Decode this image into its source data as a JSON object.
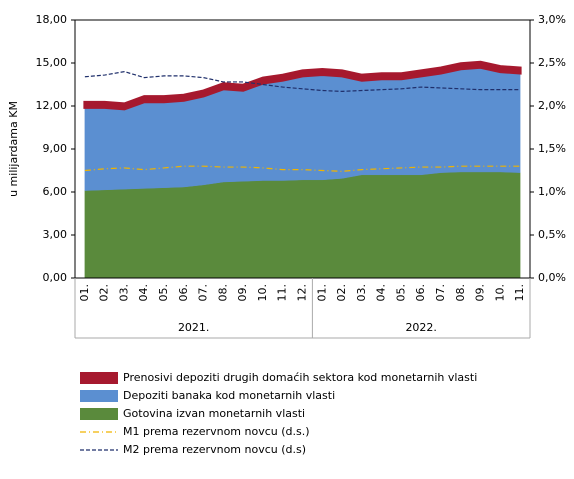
{
  "chart_data": {
    "type": "stacked_area_line",
    "y_label": "u milijardama KM",
    "categories": [
      "01.",
      "02.",
      "03.",
      "04.",
      "05.",
      "06.",
      "07.",
      "08.",
      "09.",
      "10.",
      "11.",
      "12.",
      "01.",
      "02.",
      "03.",
      "04.",
      "05.",
      "06.",
      "07.",
      "08.",
      "09.",
      "10.",
      "11."
    ],
    "group_labels": [
      "2021.",
      "2022."
    ],
    "ylim": [
      0,
      18
    ],
    "yticks": [
      {
        "value": 0,
        "label": "0,00"
      },
      {
        "value": 3,
        "label": "3,00"
      },
      {
        "value": 6,
        "label": "6,00"
      },
      {
        "value": 9,
        "label": "9,00"
      },
      {
        "value": 12,
        "label": "12,00"
      },
      {
        "value": 15,
        "label": "15,00"
      },
      {
        "value": 18,
        "label": "18,00"
      }
    ],
    "y2lim": [
      0,
      3
    ],
    "y2ticks": [
      {
        "value": 0,
        "label": "0,0%"
      },
      {
        "value": 0.5,
        "label": "0,5%"
      },
      {
        "value": 1,
        "label": "1,0%"
      },
      {
        "value": 1.5,
        "label": "1,5%"
      },
      {
        "value": 2,
        "label": "2,0%"
      },
      {
        "value": 2.5,
        "label": "2,5%"
      },
      {
        "value": 3,
        "label": "3,0%"
      }
    ],
    "series": [
      {
        "name": "Prenosivi depoziti drugih domaćih sektora kod monetarnih vlasti",
        "color": "#a6192e",
        "kind": "area",
        "values": [
          0.35,
          0.35,
          0.35,
          0.35,
          0.35,
          0.35,
          0.35,
          0.35,
          0.35,
          0.35,
          0.35,
          0.35,
          0.35,
          0.35,
          0.35,
          0.35,
          0.35,
          0.35,
          0.35,
          0.35,
          0.35,
          0.35,
          0.35
        ]
      },
      {
        "name": "Depoziti banaka kod monetarnih vlasti",
        "color": "#5b8fd1",
        "kind": "area",
        "values": [
          5.8,
          5.75,
          5.6,
          6.05,
          6.0,
          6.05,
          6.2,
          6.5,
          6.35,
          6.8,
          7.0,
          7.25,
          7.35,
          7.15,
          6.6,
          6.7,
          6.7,
          6.9,
          6.95,
          7.2,
          7.3,
          7.0,
          6.95
        ]
      },
      {
        "name": "Gotovina izvan monetarnih vlasti",
        "color": "#5a8a3c",
        "kind": "area",
        "values": [
          6.1,
          6.15,
          6.2,
          6.25,
          6.3,
          6.35,
          6.5,
          6.7,
          6.75,
          6.8,
          6.8,
          6.85,
          6.85,
          6.95,
          7.2,
          7.2,
          7.2,
          7.2,
          7.35,
          7.4,
          7.4,
          7.4,
          7.35
        ]
      },
      {
        "name": "M1 prema rezervnom novcu (d.s.)",
        "color": "#f0b400",
        "kind": "line",
        "dash": "6 3 1 3",
        "axis": "y2",
        "values": [
          1.25,
          1.27,
          1.28,
          1.26,
          1.28,
          1.3,
          1.3,
          1.29,
          1.29,
          1.28,
          1.26,
          1.26,
          1.25,
          1.24,
          1.26,
          1.27,
          1.28,
          1.29,
          1.29,
          1.3,
          1.3,
          1.3,
          1.3
        ]
      },
      {
        "name": "M2 prema rezervnom novcu (d.s)",
        "color": "#1f2f6b",
        "kind": "line",
        "dash": "4 2",
        "axis": "y2",
        "values": [
          2.34,
          2.36,
          2.4,
          2.33,
          2.35,
          2.35,
          2.33,
          2.28,
          2.28,
          2.25,
          2.22,
          2.2,
          2.18,
          2.17,
          2.18,
          2.19,
          2.2,
          2.22,
          2.21,
          2.2,
          2.19,
          2.19,
          2.19
        ]
      }
    ]
  }
}
